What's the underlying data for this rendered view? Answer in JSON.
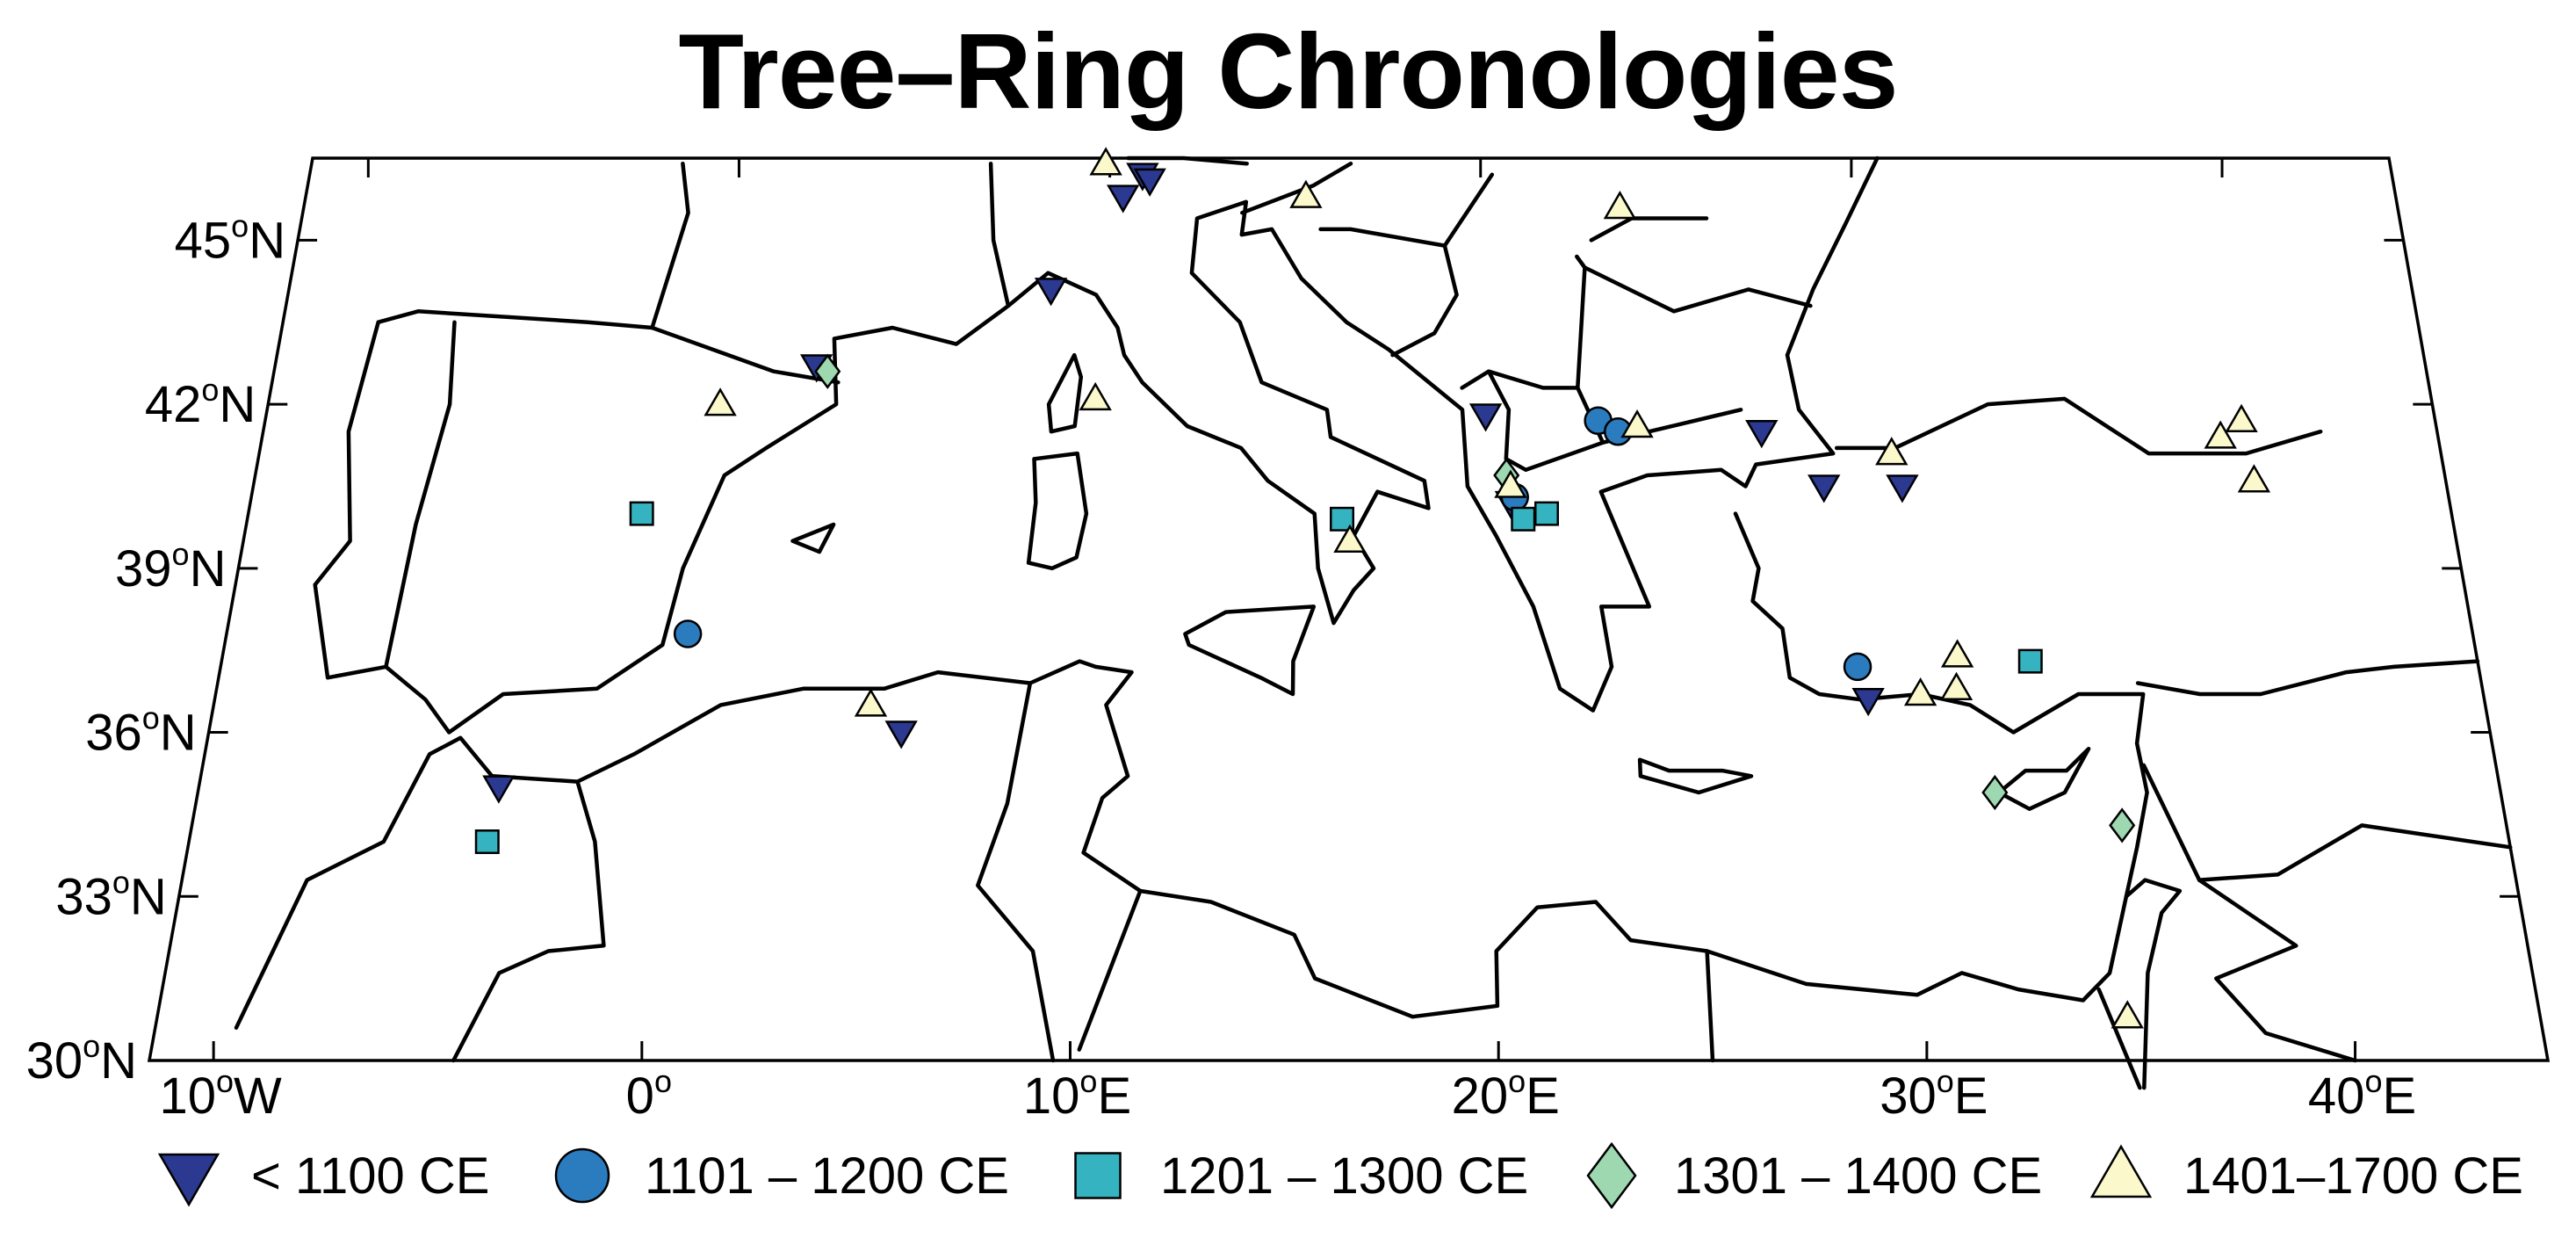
{
  "title": "Tree–Ring Chronologies",
  "axes": {
    "lat_ticks": [
      {
        "value": 45,
        "label": "45",
        "sup": "o",
        "suffix": "N"
      },
      {
        "value": 42,
        "label": "42",
        "sup": "o",
        "suffix": "N"
      },
      {
        "value": 39,
        "label": "39",
        "sup": "o",
        "suffix": "N"
      },
      {
        "value": 36,
        "label": "36",
        "sup": "o",
        "suffix": "N"
      },
      {
        "value": 33,
        "label": "33",
        "sup": "o",
        "suffix": "N"
      },
      {
        "value": 30,
        "label": "30",
        "sup": "o",
        "suffix": "N"
      }
    ],
    "lon_ticks": [
      {
        "value": -10,
        "label": "10",
        "sup": "o",
        "suffix": "W"
      },
      {
        "value": 0,
        "label": "0",
        "sup": "o",
        "suffix": ""
      },
      {
        "value": 10,
        "label": "10",
        "sup": "o",
        "suffix": "E"
      },
      {
        "value": 20,
        "label": "20",
        "sup": "o",
        "suffix": "E"
      },
      {
        "value": 30,
        "label": "30",
        "sup": "o",
        "suffix": "E"
      },
      {
        "value": 40,
        "label": "40",
        "sup": "o",
        "suffix": "E"
      }
    ]
  },
  "legend": [
    {
      "id": "lt1100",
      "shape": "triangle-down",
      "color": "#2B3990",
      "label": "< 1100 CE"
    },
    {
      "id": "c12",
      "shape": "circle",
      "color": "#2B7BBF",
      "label": "1101 – 1200 CE"
    },
    {
      "id": "c13",
      "shape": "square",
      "color": "#35B3C1",
      "label": "1201 – 1300 CE"
    },
    {
      "id": "c14",
      "shape": "diamond",
      "color": "#9ED8B0",
      "label": "1301 – 1400 CE"
    },
    {
      "id": "c15",
      "shape": "triangle-up",
      "color": "#FBF9CB",
      "label": "1401–1700 CE"
    }
  ],
  "sites": [
    {
      "period": "lt1100",
      "lon": 2.6,
      "lat": 42.7
    },
    {
      "period": "lt1100",
      "lon": 8.6,
      "lat": 44.1
    },
    {
      "period": "lt1100",
      "lon": 10.4,
      "lat": 45.8
    },
    {
      "period": "lt1100",
      "lon": 10.9,
      "lat": 46.2
    },
    {
      "period": "lt1100",
      "lon": 11.1,
      "lat": 46.1
    },
    {
      "period": "lt1100",
      "lon": -4.2,
      "lat": 35.0
    },
    {
      "period": "lt1100",
      "lon": 5.5,
      "lat": 36.0
    },
    {
      "period": "lt1100",
      "lon": 20.0,
      "lat": 41.8
    },
    {
      "period": "lt1100",
      "lon": 20.6,
      "lat": 40.2
    },
    {
      "period": "lt1100",
      "lon": 27.1,
      "lat": 41.5
    },
    {
      "period": "lt1100",
      "lon": 28.6,
      "lat": 40.5
    },
    {
      "period": "lt1100",
      "lon": 30.6,
      "lat": 40.5
    },
    {
      "period": "lt1100",
      "lon": 29.3,
      "lat": 36.6
    },
    {
      "period": "c12",
      "lon": 0.0,
      "lat": 37.8
    },
    {
      "period": "c12",
      "lon": 22.9,
      "lat": 41.7
    },
    {
      "period": "c12",
      "lon": 23.4,
      "lat": 41.5
    },
    {
      "period": "c12",
      "lon": 20.7,
      "lat": 40.3
    },
    {
      "period": "c12",
      "lon": 29.1,
      "lat": 37.2
    },
    {
      "period": "c13",
      "lon": -1.5,
      "lat": 40.0
    },
    {
      "period": "c13",
      "lon": -4.3,
      "lat": 34.0
    },
    {
      "period": "c13",
      "lon": 16.3,
      "lat": 39.9
    },
    {
      "period": "c13",
      "lon": 20.9,
      "lat": 39.9
    },
    {
      "period": "c13",
      "lon": 21.5,
      "lat": 40.0
    },
    {
      "period": "c13",
      "lon": 33.4,
      "lat": 37.3
    },
    {
      "period": "c14",
      "lon": 2.9,
      "lat": 42.6
    },
    {
      "period": "c14",
      "lon": 20.5,
      "lat": 40.7
    },
    {
      "period": "c14",
      "lon": 32.2,
      "lat": 34.9
    },
    {
      "period": "c14",
      "lon": 35.2,
      "lat": 34.3
    },
    {
      "period": "c15",
      "lon": 0.2,
      "lat": 42.0
    },
    {
      "period": "c15",
      "lon": 9.9,
      "lat": 46.4
    },
    {
      "period": "c15",
      "lon": 15.3,
      "lat": 45.8
    },
    {
      "period": "c15",
      "lon": 9.9,
      "lat": 42.1
    },
    {
      "period": "c15",
      "lon": 4.7,
      "lat": 36.5
    },
    {
      "period": "c15",
      "lon": 16.5,
      "lat": 39.5
    },
    {
      "period": "c15",
      "lon": 20.6,
      "lat": 40.5
    },
    {
      "period": "c15",
      "lon": 23.9,
      "lat": 41.6
    },
    {
      "period": "c15",
      "lon": 23.7,
      "lat": 45.6
    },
    {
      "period": "c15",
      "lon": 30.4,
      "lat": 41.1
    },
    {
      "period": "c15",
      "lon": 30.6,
      "lat": 36.7
    },
    {
      "period": "c15",
      "lon": 31.6,
      "lat": 37.4
    },
    {
      "period": "c15",
      "lon": 31.5,
      "lat": 36.8
    },
    {
      "period": "c15",
      "lon": 38.9,
      "lat": 41.4
    },
    {
      "period": "c15",
      "lon": 39.5,
      "lat": 41.7
    },
    {
      "period": "c15",
      "lon": 39.6,
      "lat": 40.6
    },
    {
      "period": "c15",
      "lon": 34.8,
      "lat": 30.8
    }
  ]
}
